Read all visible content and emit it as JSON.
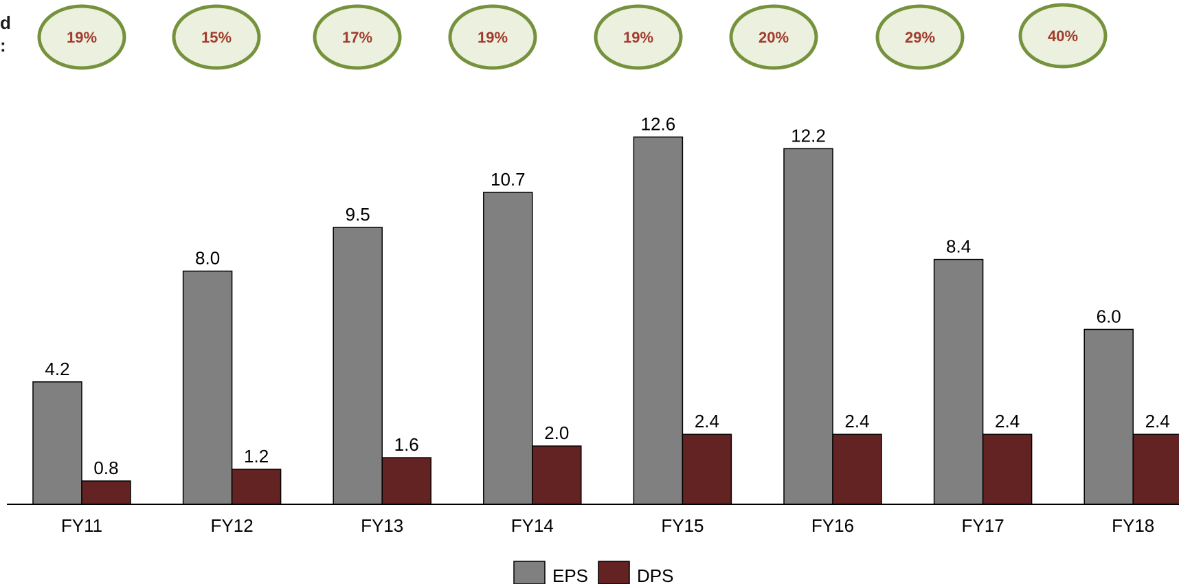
{
  "header_fragment": {
    "line1": "d",
    "line2": ":"
  },
  "chart_data": {
    "type": "bar",
    "categories": [
      "FY11",
      "FY12",
      "FY13",
      "FY14",
      "FY15",
      "FY16",
      "FY17",
      "FY18"
    ],
    "series": [
      {
        "name": "EPS",
        "values": [
          4.2,
          8.0,
          9.5,
          10.7,
          12.6,
          12.2,
          8.4,
          6.0
        ],
        "color": "#808080"
      },
      {
        "name": "DPS",
        "values": [
          0.8,
          1.2,
          1.6,
          2.0,
          2.4,
          2.4,
          2.4,
          2.4
        ],
        "color": "#632323"
      }
    ],
    "data_labels": {
      "EPS": [
        "4.2",
        "8.0",
        "9.5",
        "10.7",
        "12.6",
        "12.2",
        "8.4",
        "6.0"
      ],
      "DPS": [
        "0.8",
        "1.2",
        "1.6",
        "2.0",
        "2.4",
        "2.4",
        "2.4",
        "2.4"
      ]
    },
    "annotations": {
      "values": [
        "19%",
        "15%",
        "17%",
        "19%",
        "19%",
        "20%",
        "29%",
        "40%"
      ],
      "style": "oval",
      "fill": "#ebf1de",
      "stroke": "#76923c",
      "text_color": "#a33a2e"
    },
    "ylim": [
      0,
      14
    ],
    "grid": false,
    "legend_position": "bottom-center",
    "title": "",
    "xlabel": "",
    "ylabel": ""
  }
}
